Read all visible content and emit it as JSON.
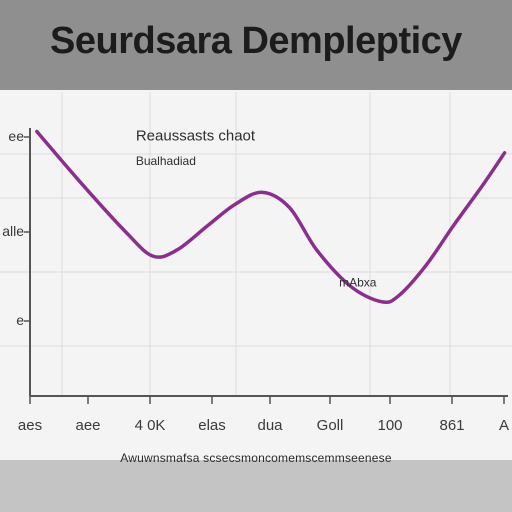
{
  "header": {
    "title": "Seurdsara Demplepticy"
  },
  "footer": {
    "caption": "Awuwnsmafsa scsecsmoncomemscemmseenese"
  },
  "colors": {
    "line": "#8a2f8e",
    "axis": "#555555",
    "grid": "#dcdcdc"
  },
  "chart_data": {
    "type": "line",
    "title": "",
    "xlabel": "",
    "ylabel": "",
    "x_tick_labels": [
      "aes",
      "aee",
      "4 0K",
      "elas",
      "dua",
      "Goll",
      "100",
      "861",
      "A"
    ],
    "y_tick_labels": [
      "ee",
      "alle",
      "e",
      "e"
    ],
    "annotations": [
      {
        "text": "Reaussasts chaot",
        "x": 3.1,
        "y": 8.4
      },
      {
        "text": "Bualhadiad",
        "x": 3.1,
        "y": 7.6
      },
      {
        "text": "mAbxa",
        "x": 9.6,
        "y": 3.6
      }
    ],
    "xlim": [
      0,
      14
    ],
    "ylim": [
      0,
      10
    ],
    "grid": true,
    "series": [
      {
        "x": [
          0.2,
          1.5,
          2.8,
          3.6,
          4.3,
          5.2,
          6.0,
          6.8,
          7.6,
          8.4,
          9.4,
          10.3,
          10.8,
          11.6,
          12.4,
          13.3,
          13.9
        ],
        "values": [
          8.7,
          7.0,
          5.4,
          4.6,
          4.8,
          5.6,
          6.3,
          6.7,
          6.2,
          4.8,
          3.6,
          3.1,
          3.3,
          4.3,
          5.6,
          7.0,
          8.0
        ]
      }
    ]
  }
}
